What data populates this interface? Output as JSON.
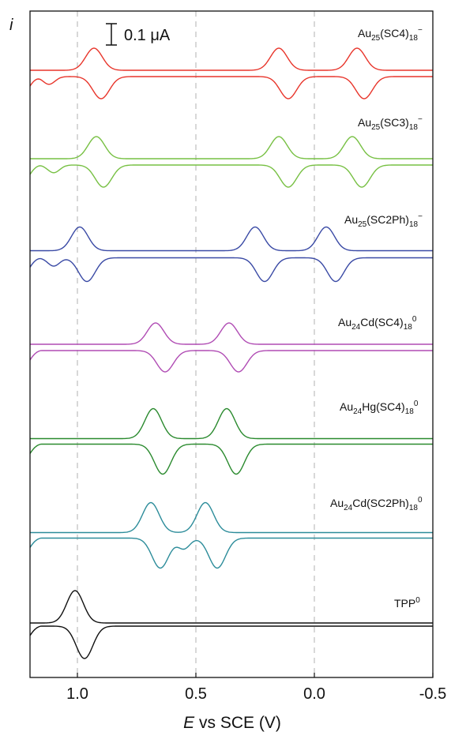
{
  "chart_data": {
    "type": "line",
    "xlabel_italic": "E",
    "xlabel_rest": " vs SCE (V)",
    "ylabel": "i",
    "xlim": [
      1.2,
      -0.5
    ],
    "x_ticks": [
      1.0,
      0.5,
      0.0,
      -0.5
    ],
    "x_tick_labels": [
      "1.0",
      "0.5",
      "0.0",
      "-0.5"
    ],
    "gridlines_x": [
      1.0,
      0.5,
      0.0
    ],
    "scale_bar_label": "0.1 μA",
    "series": [
      {
        "name": "Au25(SC4)18−",
        "label_parts": [
          [
            "Au",
            ""
          ],
          [
            "25",
            "sub"
          ],
          [
            "(SC4)",
            ""
          ],
          [
            "18",
            "sub"
          ],
          [
            "−",
            "sup"
          ]
        ],
        "color": "#e8352b",
        "fwd_peaks": [
          0.93,
          0.15,
          -0.18
        ],
        "rev_peaks": [
          0.9,
          0.11,
          -0.21
        ],
        "rev_shoulder": 1.12
      },
      {
        "name": "Au25(SC3)18−",
        "label_parts": [
          [
            "Au",
            ""
          ],
          [
            "25",
            "sub"
          ],
          [
            "(SC3)",
            ""
          ],
          [
            "18",
            "sub"
          ],
          [
            "−",
            "sup"
          ]
        ],
        "color": "#77c043",
        "fwd_peaks": [
          0.92,
          0.15,
          -0.16
        ],
        "rev_peaks": [
          0.89,
          0.11,
          -0.2
        ],
        "rev_shoulder": 1.1
      },
      {
        "name": "Au25(SC2Ph)18−",
        "label_parts": [
          [
            "Au",
            ""
          ],
          [
            "25",
            "sub"
          ],
          [
            "(SC2Ph)",
            ""
          ],
          [
            "18",
            "sub"
          ],
          [
            "−",
            "sup"
          ]
        ],
        "color": "#3a4aa5",
        "fwd_peaks": [
          0.99,
          0.25,
          -0.05
        ],
        "rev_peaks": [
          0.96,
          0.21,
          -0.09
        ],
        "rev_shoulder": 1.1
      },
      {
        "name": "Au24Cd(SC4)180",
        "label_parts": [
          [
            "Au",
            ""
          ],
          [
            "24",
            "sub"
          ],
          [
            "Cd(SC4)",
            ""
          ],
          [
            "18",
            "sub"
          ],
          [
            "0",
            "sup"
          ]
        ],
        "color": "#b04cb4",
        "fwd_peaks": [
          0.67,
          0.36
        ],
        "rev_peaks": [
          0.63,
          0.32
        ]
      },
      {
        "name": "Au24Hg(SC4)180",
        "label_parts": [
          [
            "Au",
            ""
          ],
          [
            "24",
            "sub"
          ],
          [
            "Hg(SC4)",
            ""
          ],
          [
            "18",
            "sub"
          ],
          [
            "0",
            "sup"
          ]
        ],
        "color": "#2a8a2e",
        "fwd_peaks": [
          0.68,
          0.37
        ],
        "rev_peaks": [
          0.64,
          0.33
        ]
      },
      {
        "name": "Au24Cd(SC2Ph)180",
        "label_parts": [
          [
            "Au",
            ""
          ],
          [
            "24",
            "sub"
          ],
          [
            "Cd(SC2Ph)",
            ""
          ],
          [
            "18",
            "sub"
          ],
          [
            "0",
            "sup"
          ]
        ],
        "color": "#2c8c9a",
        "fwd_peaks": [
          0.69,
          0.46
        ],
        "rev_peaks": [
          0.65,
          0.41
        ],
        "rev_shoulder": 0.55
      },
      {
        "name": "TPP0",
        "label_parts": [
          [
            "TPP",
            ""
          ],
          [
            "0",
            "sup"
          ]
        ],
        "color": "#111111",
        "fwd_peaks": [
          1.01
        ],
        "rev_peaks": [
          0.97
        ]
      }
    ]
  }
}
